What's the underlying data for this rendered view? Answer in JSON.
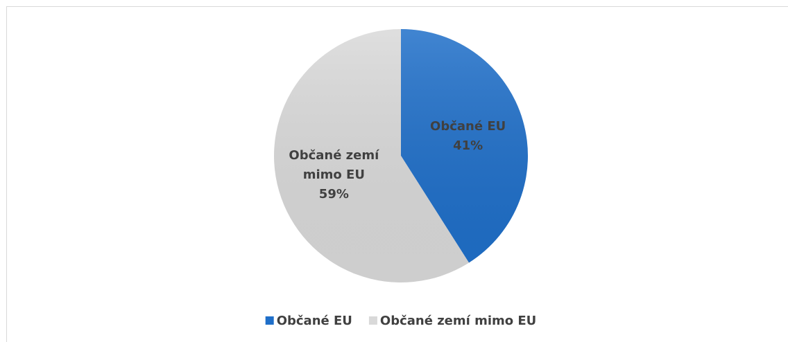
{
  "chart_data": {
    "type": "pie",
    "categories": [
      "Občané EU",
      "Občané zemí mimo EU"
    ],
    "values": [
      41,
      59
    ],
    "value_labels": [
      "41%",
      "59%"
    ],
    "colors": [
      "#1f6fc9",
      "#d9d9d9"
    ],
    "legend": "bottom"
  }
}
